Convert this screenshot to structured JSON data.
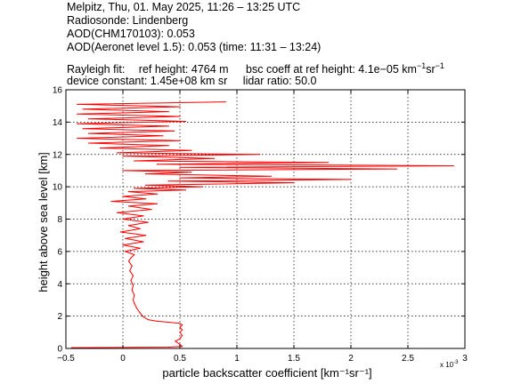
{
  "header": {
    "line1": "Melpitz, Thu, 01. May 2025, 11:26 – 13:25 UTC",
    "line2": "Radiosonde: Lindenberg",
    "line3": "AOD(CHM170103): 0.053",
    "line4": "AOD(Aeronet level 1.5): 0.053   (time: 11:31 – 13:24)",
    "rayleigh_label": "Rayleigh fit:",
    "ref_height": "ref height: 4764 m",
    "bsc_coeff_prefix": "bsc coeff at ref height: 4.1e−05 km",
    "bsc_coeff_exp1": "−1",
    "bsc_coeff_mid": "sr",
    "bsc_coeff_exp2": "−1",
    "device_constant": "device constant: 1.45e+08 km sr",
    "lidar_ratio": "lidar ratio: 50.0"
  },
  "chart_data": {
    "type": "line",
    "xlabel": "particle backscatter coefficient [km⁻¹sr⁻¹]",
    "ylabel": "height above sea level [km]",
    "x_scale_note": "x 10",
    "x_scale_exponent": "-3",
    "xlim": [
      -0.5,
      3.0
    ],
    "ylim": [
      0,
      16
    ],
    "xticks": [
      "−0.5",
      "0",
      "0.5",
      "1",
      "1.5",
      "2",
      "2.5",
      "3"
    ],
    "yticks": [
      "0",
      "2",
      "4",
      "6",
      "8",
      "10",
      "12",
      "14",
      "16"
    ],
    "grid": true,
    "series": [
      {
        "color": "#ff0000",
        "points": [
          [
            -0.45,
            0.05
          ],
          [
            0.4,
            0.08
          ],
          [
            0.52,
            0.12
          ],
          [
            0.5,
            0.25
          ],
          [
            0.46,
            0.45
          ],
          [
            0.5,
            0.6
          ],
          [
            0.52,
            0.8
          ],
          [
            0.5,
            1.0
          ],
          [
            0.52,
            1.15
          ],
          [
            0.5,
            1.3
          ],
          [
            0.52,
            1.45
          ],
          [
            0.5,
            1.55
          ],
          [
            0.4,
            1.62
          ],
          [
            0.3,
            1.68
          ],
          [
            0.22,
            1.78
          ],
          [
            0.18,
            1.95
          ],
          [
            0.15,
            2.2
          ],
          [
            0.12,
            2.5
          ],
          [
            0.1,
            2.8
          ],
          [
            0.09,
            3.0
          ],
          [
            0.1,
            3.3
          ],
          [
            0.08,
            3.6
          ],
          [
            0.09,
            3.9
          ],
          [
            0.07,
            4.2
          ],
          [
            0.09,
            4.5
          ],
          [
            0.06,
            4.8
          ],
          [
            0.08,
            5.1
          ],
          [
            0.05,
            5.4
          ],
          [
            0.07,
            5.6
          ],
          [
            0.1,
            5.8
          ],
          [
            0.02,
            6.0
          ],
          [
            0.15,
            6.2
          ],
          [
            0.0,
            6.4
          ],
          [
            0.18,
            6.6
          ],
          [
            0.02,
            6.8
          ],
          [
            0.2,
            7.0
          ],
          [
            -0.02,
            7.2
          ],
          [
            0.15,
            7.4
          ],
          [
            0.05,
            7.6
          ],
          [
            0.22,
            7.8
          ],
          [
            0.0,
            8.0
          ],
          [
            0.18,
            8.2
          ],
          [
            -0.05,
            8.4
          ],
          [
            0.25,
            8.6
          ],
          [
            0.05,
            8.8
          ],
          [
            0.3,
            8.95
          ],
          [
            -0.1,
            9.1
          ],
          [
            0.2,
            9.25
          ],
          [
            0.0,
            9.4
          ],
          [
            0.3,
            9.55
          ],
          [
            0.05,
            9.7
          ],
          [
            0.55,
            9.8
          ],
          [
            0.1,
            9.9
          ],
          [
            0.7,
            10.0
          ],
          [
            0.2,
            10.1
          ],
          [
            1.5,
            10.25
          ],
          [
            0.4,
            10.35
          ],
          [
            2.0,
            10.45
          ],
          [
            0.5,
            10.55
          ],
          [
            1.3,
            10.65
          ],
          [
            0.2,
            10.8
          ],
          [
            0.6,
            10.9
          ],
          [
            0.0,
            11.0
          ],
          [
            2.4,
            11.1
          ],
          [
            0.5,
            11.2
          ],
          [
            2.9,
            11.3
          ],
          [
            0.3,
            11.4
          ],
          [
            1.8,
            11.5
          ],
          [
            0.1,
            11.6
          ],
          [
            0.8,
            11.75
          ],
          [
            0.0,
            11.9
          ],
          [
            1.2,
            12.0
          ],
          [
            -0.05,
            12.1
          ],
          [
            0.6,
            12.25
          ],
          [
            -0.2,
            12.4
          ],
          [
            0.4,
            12.55
          ],
          [
            -0.3,
            12.7
          ],
          [
            0.5,
            12.85
          ],
          [
            -0.4,
            13.0
          ],
          [
            0.35,
            13.15
          ],
          [
            -0.3,
            13.3
          ],
          [
            0.45,
            13.45
          ],
          [
            -0.35,
            13.6
          ],
          [
            0.4,
            13.75
          ],
          [
            -0.4,
            13.9
          ],
          [
            0.55,
            14.05
          ],
          [
            -0.3,
            14.2
          ],
          [
            0.5,
            14.35
          ],
          [
            -0.4,
            14.5
          ],
          [
            0.4,
            14.65
          ],
          [
            -0.35,
            14.8
          ],
          [
            0.5,
            14.95
          ],
          [
            -0.4,
            15.1
          ],
          [
            0.9,
            15.25
          ]
        ]
      }
    ]
  }
}
